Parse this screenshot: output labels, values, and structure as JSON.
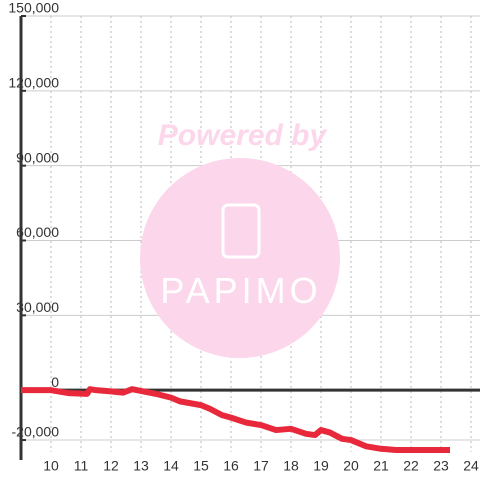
{
  "chart_data": {
    "type": "line",
    "watermark": {
      "line1": "Powered by",
      "line2": "PAPIMO"
    },
    "series": [
      {
        "color": "#e8293b",
        "x": [
          9,
          10,
          10.6,
          11.2,
          11.3,
          11.5,
          12,
          12.4,
          12.7,
          13,
          13.5,
          14,
          14.3,
          15,
          15.3,
          15.7,
          16,
          16.5,
          17,
          17.5,
          18,
          18.5,
          18.8,
          19,
          19.3,
          19.7,
          20,
          20.5,
          21,
          21.5,
          22,
          23,
          23.3
        ],
        "values": [
          0,
          0,
          -1200,
          -1500,
          400,
          0,
          -500,
          -1000,
          400,
          -300,
          -1500,
          -3000,
          -4500,
          -6000,
          -7500,
          -10000,
          -11000,
          -13000,
          -14000,
          -16000,
          -15500,
          -17500,
          -18000,
          -16000,
          -17000,
          -19500,
          -20000,
          -22500,
          -23500,
          -24000,
          -24000,
          -24000,
          -24000
        ]
      }
    ],
    "xlim": [
      9,
      24.3
    ],
    "xticks": [
      10,
      11,
      12,
      13,
      14,
      15,
      16,
      17,
      18,
      19,
      20,
      21,
      22,
      23,
      24
    ],
    "ylim": [
      -28000,
      150000
    ],
    "yticks": [
      {
        "value": -20000,
        "label": "-20,000"
      },
      0,
      {
        "value": 30000,
        "label": "30,000"
      },
      {
        "value": 60000,
        "label": "60,000"
      },
      {
        "value": 90000,
        "label": "90,000"
      },
      {
        "value": 120000,
        "label": "120,000"
      },
      {
        "value": 150000,
        "label": "150,000"
      }
    ],
    "grid": true
  }
}
